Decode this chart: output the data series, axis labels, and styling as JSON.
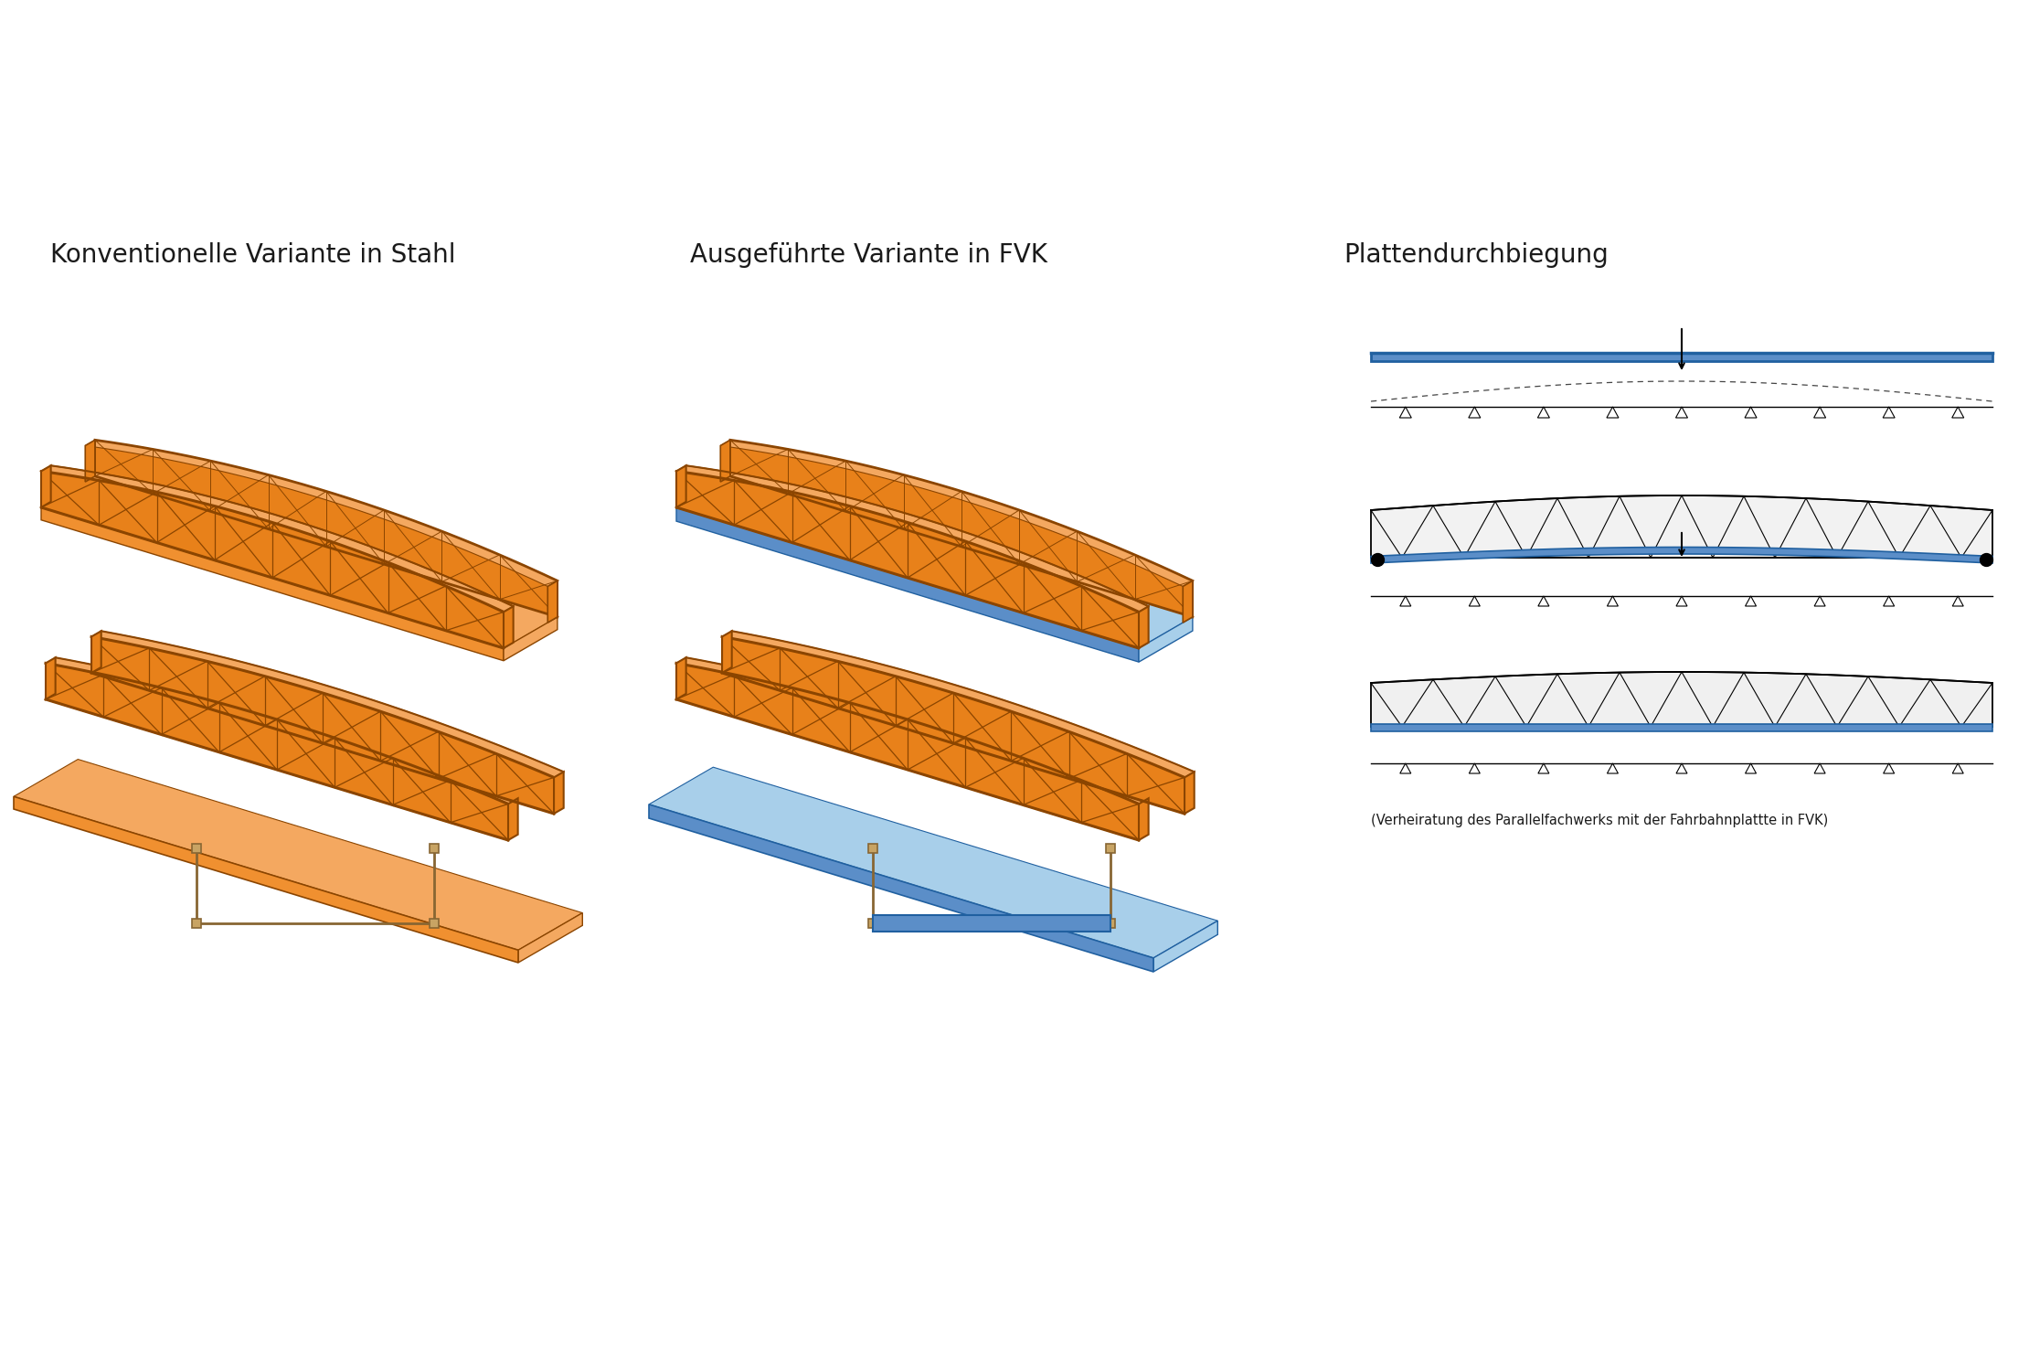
{
  "title_left": "Konventionelle Variante in Stahl",
  "title_mid": "Ausgeführte Variante in FVK",
  "title_right": "Plattendurchbiegung",
  "caption_line1": "(Verheiratung des Parallelfachwerks mit der Fahrbahnplattte in FVK)",
  "orange": "#E8811A",
  "orange_dk": "#8B4500",
  "orange_lt": "#F4A860",
  "orange_face": "#F09030",
  "blue": "#5B8EC8",
  "blue_lt": "#A8CFEA",
  "blue_dk": "#2060A0",
  "blue_top": "#85B8DC",
  "steel": "#C8A464",
  "steel_dk": "#886633",
  "bg": "#FFFFFF",
  "text": "#1A1A1A"
}
